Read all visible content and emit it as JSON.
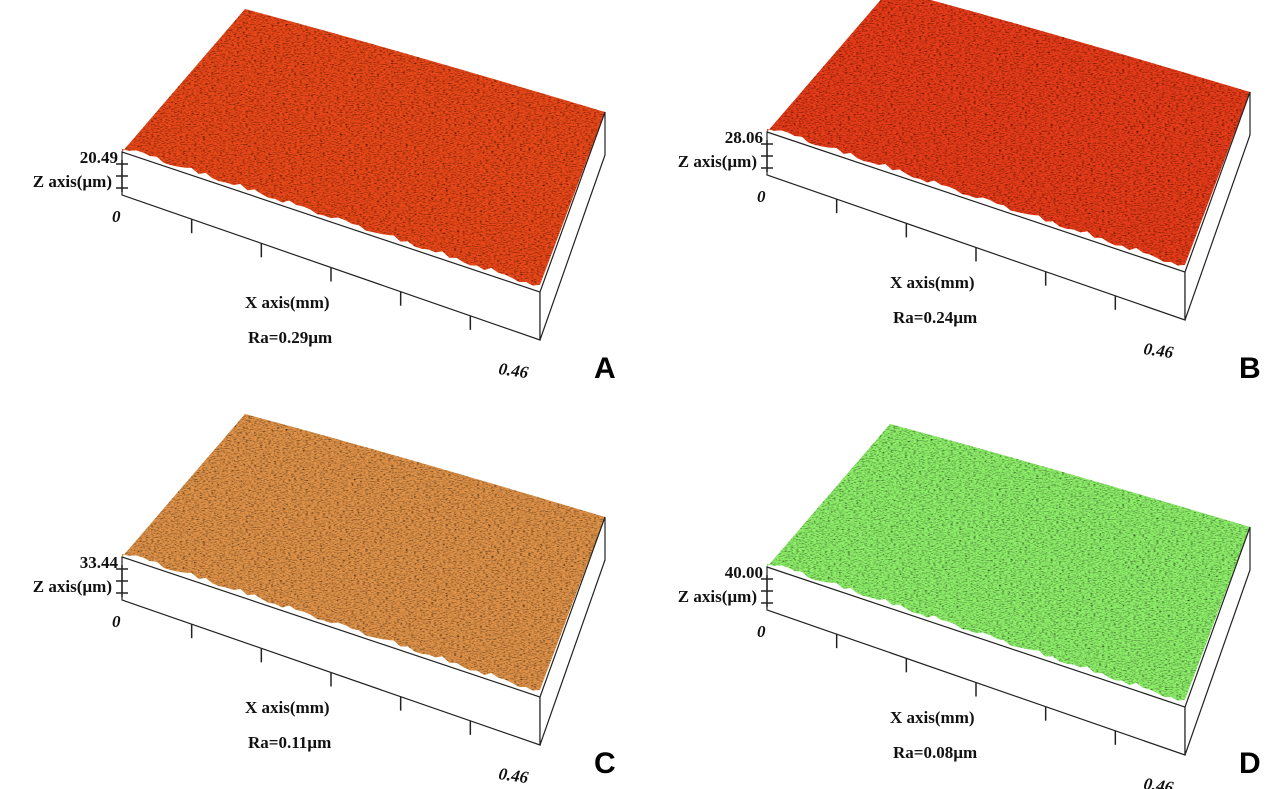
{
  "panels": [
    {
      "label": "A",
      "z_max": "20.49",
      "z_axis": "Z axis(µm)",
      "origin": "0",
      "x_axis": "X axis(mm)",
      "ra": "Ra=0.29µm",
      "x_end": "0.46"
    },
    {
      "label": "B",
      "z_max": "28.06",
      "z_axis": "Z axis(µm)",
      "origin": "0",
      "x_axis": "X axis(mm)",
      "ra": "Ra=0.24µm",
      "x_end": "0.46"
    },
    {
      "label": "C",
      "z_max": "33.44",
      "z_axis": "Z axis(µm)",
      "origin": "0",
      "x_axis": "X axis(mm)",
      "ra": "Ra=0.11µm",
      "x_end": "0.46"
    },
    {
      "label": "D",
      "z_max": "40.00",
      "z_axis": "Z axis(µm)",
      "origin": "0",
      "x_axis": "X axis(mm)",
      "ra": "Ra=0.08µm",
      "x_end": "0.46"
    }
  ]
}
